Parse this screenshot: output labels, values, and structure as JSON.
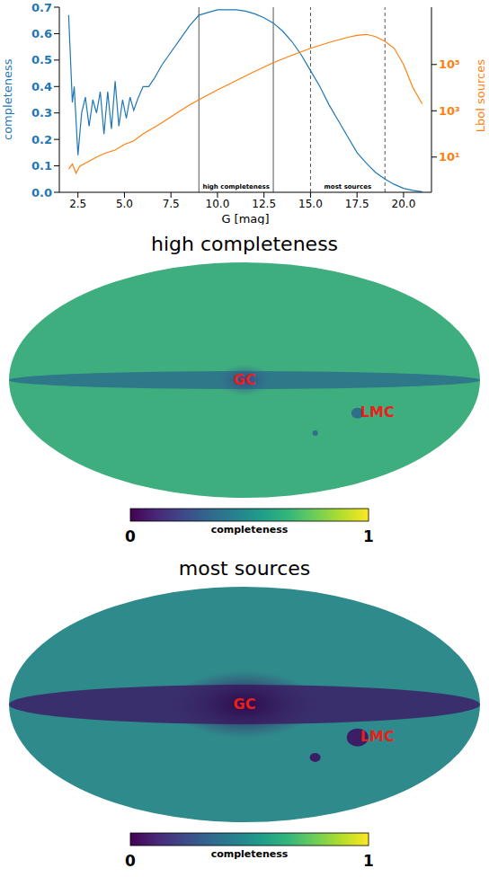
{
  "chart_data": [
    {
      "type": "line",
      "xlabel": "G [mag]",
      "ylabel": "completeness",
      "y2label": "Lbol sources",
      "xlim": [
        1.5,
        21.5
      ],
      "xticks": [
        2.5,
        {
          "value": 5,
          "label": "5.0"
        },
        7.5,
        {
          "value": 10,
          "label": "10.0"
        },
        12.5,
        {
          "value": 15,
          "label": "15.0"
        },
        17.5,
        {
          "value": 20,
          "label": "20.0"
        }
      ],
      "ylim": [
        0,
        0.7
      ],
      "yticks": [
        {
          "value": 0,
          "label": "0.0"
        },
        0.1,
        0.2,
        0.3,
        0.4,
        0.5,
        0.6,
        0.7
      ],
      "y2lim": [
        0.3,
        30000000
      ],
      "y2ticks": [
        {
          "value": 10,
          "label": "10¹"
        },
        {
          "value": 1000,
          "label": "10³"
        },
        {
          "value": 100000,
          "label": "10⁵"
        }
      ],
      "log": "y2",
      "series": [
        {
          "name": "completeness",
          "color": "#1f77b4",
          "axis": "y",
          "x": [
            2.0,
            2.2,
            2.3,
            2.5,
            2.7,
            2.9,
            3.1,
            3.3,
            3.5,
            3.7,
            3.9,
            4.1,
            4.3,
            4.5,
            4.7,
            4.9,
            5.1,
            5.3,
            5.5,
            5.7,
            6.0,
            6.3,
            6.6,
            7.0,
            7.5,
            8.0,
            8.5,
            9.0,
            9.5,
            10.0,
            11.0,
            11.5,
            12.0,
            12.5,
            13.0,
            13.5,
            14.0,
            14.5,
            15.0,
            15.5,
            16.0,
            16.5,
            17.0,
            17.5,
            18.0,
            18.5,
            19.0,
            19.5,
            20.0,
            20.5,
            21.0
          ],
          "values": [
            0.67,
            0.34,
            0.4,
            0.14,
            0.3,
            0.36,
            0.25,
            0.35,
            0.3,
            0.38,
            0.22,
            0.38,
            0.24,
            0.42,
            0.25,
            0.35,
            0.28,
            0.36,
            0.31,
            0.35,
            0.4,
            0.4,
            0.43,
            0.48,
            0.53,
            0.58,
            0.63,
            0.67,
            0.68,
            0.69,
            0.69,
            0.685,
            0.675,
            0.66,
            0.64,
            0.61,
            0.57,
            0.52,
            0.46,
            0.4,
            0.33,
            0.27,
            0.21,
            0.15,
            0.11,
            0.075,
            0.05,
            0.03,
            0.015,
            0.007,
            0.002
          ]
        },
        {
          "name": "Lbol sources",
          "color": "#ff7f0e",
          "axis": "y2",
          "x": [
            2.0,
            2.2,
            2.4,
            2.6,
            3.0,
            3.5,
            4.0,
            4.5,
            5.0,
            5.5,
            6.0,
            6.5,
            7.0,
            7.5,
            8.0,
            8.5,
            9.0,
            10.0,
            11.0,
            12.0,
            13.0,
            14.0,
            15.0,
            16.0,
            17.0,
            17.5,
            18.0,
            18.5,
            19.0,
            19.5,
            20.0,
            20.5,
            21.0
          ],
          "values": [
            3,
            5,
            2,
            4,
            6,
            10,
            15,
            20,
            35,
            50,
            100,
            170,
            300,
            550,
            1000,
            1800,
            3000,
            8000,
            20000,
            50000,
            120000,
            250000,
            500000,
            900000,
            1500000,
            1800000,
            2000000,
            1600000,
            1000000,
            500000,
            100000,
            10000,
            2000
          ]
        }
      ],
      "spans": [
        {
          "x": [
            9,
            13
          ],
          "label": "high completeness",
          "line_style": "solid"
        },
        {
          "x": [
            15,
            19
          ],
          "label": "most sources",
          "line_style": "dashed"
        }
      ]
    },
    {
      "type": "map",
      "title": "high completeness",
      "annotations": [
        "GC",
        "LMC"
      ],
      "colorbar": {
        "label": "completeness",
        "range": [
          0,
          1
        ],
        "ticks": [
          0,
          1
        ]
      }
    },
    {
      "type": "map",
      "title": "most sources",
      "annotations": [
        "GC",
        "LMC"
      ],
      "colorbar": {
        "label": "completeness",
        "range": [
          0,
          1
        ],
        "ticks": [
          0,
          1
        ]
      }
    }
  ]
}
